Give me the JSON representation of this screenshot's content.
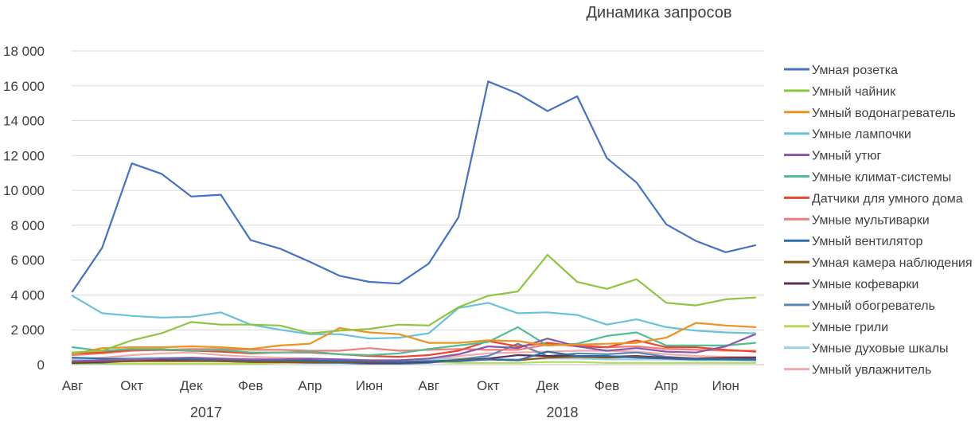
{
  "chart_data": {
    "type": "line",
    "title": "Динамика запросов",
    "xlabel": "",
    "ylabel": "",
    "ylim": [
      0,
      18000
    ],
    "yticks": [
      0,
      2000,
      4000,
      6000,
      8000,
      10000,
      12000,
      14000,
      16000,
      18000
    ],
    "ytick_labels": [
      "0",
      "2 000",
      "4 000",
      "6 000",
      "8 000",
      "10 000",
      "12 000",
      "14 000",
      "16 000",
      "18 000"
    ],
    "grid": true,
    "legend_position": "right",
    "x": [
      "2017-08",
      "2017-09",
      "2017-10",
      "2017-11",
      "2017-12",
      "2018-01",
      "2018-02",
      "2018-03",
      "2018-04",
      "2018-05",
      "2018-06",
      "2018-07",
      "2018-08",
      "2018-09",
      "2018-10",
      "2018-11",
      "2018-12",
      "2019-01",
      "2019-02",
      "2019-03",
      "2019-04",
      "2019-05",
      "2019-06",
      "2019-07"
    ],
    "xtick_labels": [
      "Авг",
      "",
      "Окт",
      "",
      "Дек",
      "",
      "Фев",
      "",
      "Апр",
      "",
      "Июн",
      "",
      "Авг",
      "",
      "Окт",
      "",
      "Дек",
      "",
      "Фев",
      "",
      "Апр",
      "",
      "Июн",
      ""
    ],
    "year_labels": [
      {
        "label": "2017",
        "index": 5
      },
      {
        "label": "2018",
        "index": 17
      }
    ],
    "series": [
      {
        "name": "Умная розетка",
        "color": "#4472c4",
        "values": [
          4200,
          6700,
          11550,
          10950,
          9650,
          9750,
          7150,
          6650,
          5900,
          5100,
          4750,
          4650,
          5800,
          8450,
          16250,
          15550,
          14550,
          15400,
          11850,
          10450,
          8050,
          7100,
          6450,
          6850
        ]
      },
      {
        "name": "Умный чайник",
        "color": "#8cc63e",
        "values": [
          700,
          800,
          1400,
          1800,
          2450,
          2300,
          2300,
          2250,
          1800,
          1950,
          2050,
          2300,
          2250,
          3300,
          3950,
          4200,
          6300,
          4750,
          4350,
          4900,
          3550,
          3400,
          3750,
          3850
        ]
      },
      {
        "name": "Умный водонагреватель",
        "color": "#f0921f",
        "values": [
          600,
          950,
          1000,
          1000,
          1050,
          1000,
          900,
          1100,
          1200,
          2100,
          1850,
          1750,
          1250,
          1250,
          1400,
          1350,
          1100,
          1150,
          1200,
          1250,
          1550,
          2400,
          2250,
          2150
        ]
      },
      {
        "name": "Умные лампочки",
        "color": "#69c3d8",
        "values": [
          3950,
          2950,
          2800,
          2700,
          2750,
          3000,
          2300,
          2000,
          1750,
          1750,
          1500,
          1550,
          1800,
          3250,
          3550,
          2950,
          3000,
          2850,
          2300,
          2600,
          2150,
          1950,
          1850,
          1800
        ]
      },
      {
        "name": "Умный утюг",
        "color": "#8b58a8",
        "values": [
          200,
          250,
          300,
          350,
          400,
          350,
          300,
          300,
          350,
          300,
          250,
          250,
          350,
          600,
          1050,
          950,
          1500,
          1050,
          800,
          950,
          750,
          700,
          1050,
          1750
        ]
      },
      {
        "name": "Умные климат-системы",
        "color": "#4cbf94",
        "values": [
          1000,
          800,
          900,
          900,
          800,
          850,
          700,
          700,
          750,
          600,
          550,
          650,
          900,
          1100,
          1300,
          2150,
          1100,
          1200,
          1650,
          1850,
          1100,
          1100,
          1100,
          1250
        ]
      },
      {
        "name": "Датчики для умного дома",
        "color": "#e8482f",
        "values": [
          650,
          700,
          850,
          850,
          800,
          750,
          650,
          700,
          700,
          600,
          500,
          450,
          550,
          800,
          1350,
          1050,
          1250,
          1050,
          1000,
          1400,
          1000,
          1000,
          850,
          750
        ]
      },
      {
        "name": "Умные мультиварки",
        "color": "#ef7b7b",
        "values": [
          550,
          650,
          800,
          850,
          900,
          900,
          850,
          850,
          800,
          800,
          950,
          800,
          850,
          900,
          850,
          850,
          1150,
          1150,
          1000,
          1050,
          900,
          850,
          800,
          800
        ]
      },
      {
        "name": "Умный вентилятор",
        "color": "#2e6da4",
        "values": [
          400,
          350,
          300,
          350,
          300,
          300,
          250,
          250,
          250,
          200,
          200,
          150,
          200,
          200,
          300,
          250,
          750,
          500,
          500,
          400,
          350,
          300,
          300,
          300
        ]
      },
      {
        "name": "Умная камера наблюдения",
        "color": "#8a5a12",
        "values": [
          150,
          200,
          200,
          200,
          200,
          200,
          150,
          150,
          150,
          150,
          150,
          150,
          200,
          250,
          300,
          250,
          400,
          450,
          400,
          450,
          350,
          300,
          350,
          300
        ]
      },
      {
        "name": "Умные кофеварки",
        "color": "#5c2f59",
        "values": [
          100,
          150,
          200,
          250,
          250,
          200,
          150,
          150,
          150,
          150,
          100,
          100,
          150,
          250,
          350,
          550,
          500,
          500,
          450,
          500,
          400,
          350,
          400,
          400
        ]
      },
      {
        "name": "Умный обогреватель",
        "color": "#5a87b8",
        "values": [
          100,
          100,
          250,
          350,
          300,
          250,
          200,
          150,
          100,
          100,
          50,
          50,
          100,
          300,
          500,
          1200,
          500,
          650,
          600,
          700,
          450,
          350,
          300,
          250
        ]
      },
      {
        "name": "Умные грили",
        "color": "#b5d75a",
        "values": [
          50,
          50,
          50,
          50,
          50,
          50,
          50,
          100,
          100,
          100,
          100,
          100,
          150,
          100,
          100,
          100,
          150,
          150,
          100,
          100,
          100,
          100,
          100,
          100
        ]
      },
      {
        "name": "Умные духовые шкалы",
        "color": "#96d2e4",
        "values": [
          250,
          350,
          400,
          400,
          400,
          350,
          300,
          300,
          300,
          300,
          250,
          250,
          300,
          350,
          350,
          300,
          350,
          350,
          300,
          300,
          300,
          250,
          250,
          250
        ]
      },
      {
        "name": "Умный увлажнитель",
        "color": "#f1a9a9",
        "values": [
          300,
          400,
          550,
          650,
          700,
          550,
          450,
          400,
          350,
          250,
          200,
          200,
          300,
          500,
          650,
          700,
          750,
          800,
          800,
          750,
          600,
          500,
          450,
          450
        ]
      }
    ]
  }
}
